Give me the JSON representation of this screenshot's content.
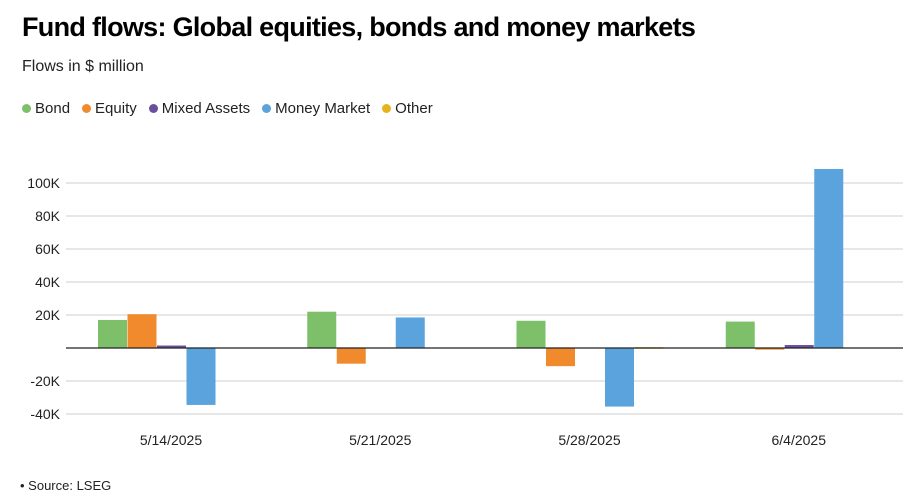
{
  "title": "Fund flows: Global equities, bonds and money markets",
  "subtitle": "Flows in $ million",
  "source": "• Source: LSEG",
  "chart_data": {
    "type": "bar",
    "categories": [
      "5/14/2025",
      "5/21/2025",
      "5/28/2025",
      "6/4/2025"
    ],
    "series": [
      {
        "name": "Bond",
        "color": "#7ebf6a",
        "values": [
          17000,
          22000,
          16500,
          16000
        ]
      },
      {
        "name": "Equity",
        "color": "#f08a2c",
        "values": [
          20500,
          -9500,
          -11000,
          -1000
        ]
      },
      {
        "name": "Mixed Assets",
        "color": "#6a4f9c",
        "values": [
          1500,
          0,
          0,
          1800
        ]
      },
      {
        "name": "Money Market",
        "color": "#5aa3dc",
        "values": [
          -34500,
          18500,
          -35500,
          108500
        ]
      },
      {
        "name": "Other",
        "color": "#e8b21f",
        "values": [
          0,
          0,
          500,
          0
        ]
      }
    ],
    "yticks": [
      100000,
      80000,
      60000,
      40000,
      20000,
      0,
      -20000,
      -40000
    ],
    "ytick_labels": [
      "100K",
      "80K",
      "60K",
      "40K",
      "20K",
      "",
      "-20K",
      "-40K"
    ],
    "ylim": [
      -40000,
      110000
    ],
    "grid": true,
    "legend_position": "top-left"
  }
}
